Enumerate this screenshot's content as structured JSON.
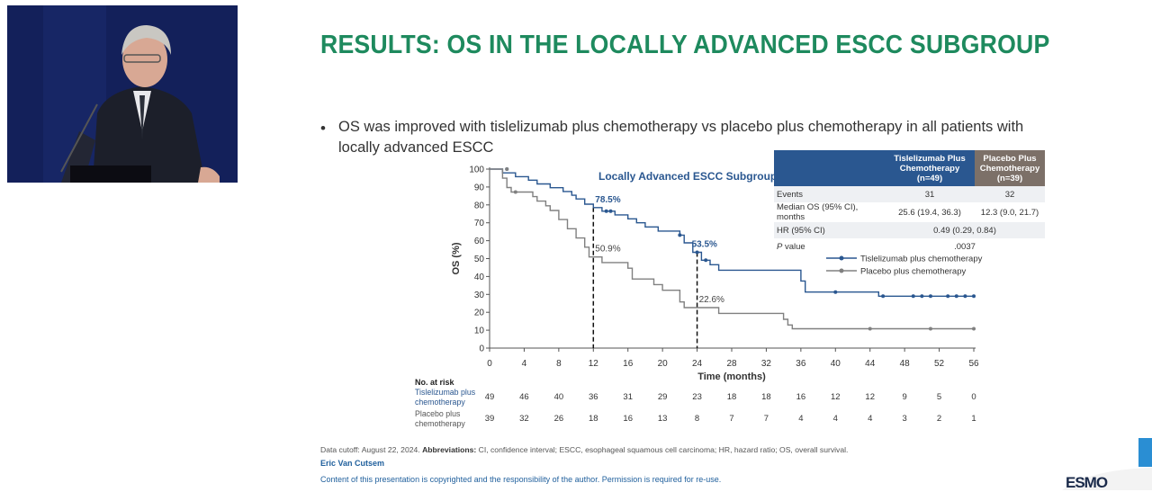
{
  "slide": {
    "title": "RESULTS: OS IN THE LOCALLY ADVANCED ESCC SUBGROUP",
    "bullet_marker": "•",
    "bullet": "OS was improved with tislelizumab plus chemotherapy vs placebo plus chemotherapy in all patients with locally advanced ESCC"
  },
  "table": {
    "headers": [
      "",
      "Tislelizumab Plus Chemotherapy (n=49)",
      "Placebo Plus Chemotherapy (n=39)"
    ],
    "header_lines": {
      "tis": [
        "Tislelizumab Plus",
        "Chemotherapy",
        "(n=49)"
      ],
      "pla": [
        "Placebo Plus",
        "Chemotherapy",
        "(n=39)"
      ]
    },
    "rows": [
      {
        "label": "Events",
        "tis": "31",
        "pla": "32"
      },
      {
        "label": "Median OS (95% CI), months",
        "tis": "25.6 (19.4, 36.3)",
        "pla": "12.3 (9.0, 21.7)"
      },
      {
        "label": "HR (95% CI)",
        "value": "0.49 (0.29, 0.84)"
      },
      {
        "label_italic": "P",
        "label_rest": " value",
        "value": ".0037"
      }
    ]
  },
  "footer": {
    "cutoff": "Data cutoff: August 22, 2024.",
    "abbrev_label": "Abbreviations:",
    "abbrev_text": "CI, confidence interval; ESCC, esophageal squamous cell carcinoma; HR, hazard ratio; OS, overall survival.",
    "author": "Eric Van Cutsem",
    "copyright": "Content of this presentation is copyrighted and the responsibility of the author. Permission is required for re-use.",
    "logo": "ESMO"
  },
  "colors": {
    "title_green": "#1e8a5e",
    "tislelizumab": "#2a5790",
    "placebo": "#808080",
    "placebo_header": "#7c7068",
    "link_blue": "#1f5f9c"
  },
  "chart_data": {
    "type": "line",
    "title": "Locally Advanced ESCC Subgroup",
    "xlabel": "Time (months)",
    "ylabel": "OS (%)",
    "xlim": [
      0,
      56
    ],
    "ylim": [
      0,
      100
    ],
    "xticks": [
      0,
      4,
      8,
      12,
      16,
      20,
      24,
      28,
      32,
      36,
      40,
      44,
      48,
      52,
      56
    ],
    "yticks": [
      0,
      10,
      20,
      30,
      40,
      50,
      60,
      70,
      80,
      90,
      100
    ],
    "legend_position": "right",
    "series": [
      {
        "name": "Tislelizumab plus chemotherapy",
        "color": "#2a5790",
        "steps": [
          [
            0,
            100
          ],
          [
            1.5,
            100
          ],
          [
            1.5,
            97.9
          ],
          [
            3,
            97.9
          ],
          [
            3,
            95.8
          ],
          [
            4.5,
            95.8
          ],
          [
            4.5,
            93.8
          ],
          [
            5.5,
            93.8
          ],
          [
            5.5,
            91.7
          ],
          [
            7,
            91.7
          ],
          [
            7,
            89.6
          ],
          [
            8.5,
            89.6
          ],
          [
            8.5,
            87.5
          ],
          [
            9.5,
            87.5
          ],
          [
            9.5,
            85.4
          ],
          [
            10,
            85.4
          ],
          [
            10,
            83.3
          ],
          [
            11,
            83.3
          ],
          [
            11,
            80.4
          ],
          [
            12,
            80.4
          ],
          [
            12,
            78.5
          ],
          [
            13,
            78.5
          ],
          [
            13,
            76.5
          ],
          [
            14.5,
            76.5
          ],
          [
            14.5,
            74.4
          ],
          [
            16,
            74.4
          ],
          [
            16,
            72.2
          ],
          [
            17,
            72.2
          ],
          [
            17,
            70.0
          ],
          [
            18,
            70.0
          ],
          [
            18,
            67.7
          ],
          [
            19.5,
            67.7
          ],
          [
            19.5,
            65.4
          ],
          [
            22,
            65.4
          ],
          [
            22,
            63.1
          ],
          [
            22.5,
            63.1
          ],
          [
            22.5,
            58.8
          ],
          [
            23.5,
            58.8
          ],
          [
            23.5,
            53.5
          ],
          [
            24.5,
            53.5
          ],
          [
            24.5,
            49.1
          ],
          [
            25.5,
            49.1
          ],
          [
            25.5,
            46.6
          ],
          [
            26.5,
            46.6
          ],
          [
            26.5,
            43.5
          ],
          [
            36,
            43.5
          ],
          [
            36,
            37.5
          ],
          [
            36.5,
            37.5
          ],
          [
            36.5,
            31.3
          ],
          [
            45,
            31.3
          ],
          [
            45,
            29.0
          ],
          [
            56,
            29.0
          ]
        ],
        "censors": [
          [
            2,
            100
          ],
          [
            13.5,
            76.5
          ],
          [
            14,
            76.5
          ],
          [
            22,
            63.1
          ],
          [
            24,
            53.5
          ],
          [
            25,
            49.1
          ],
          [
            40,
            31.3
          ],
          [
            45.5,
            29.0
          ],
          [
            49,
            29.0
          ],
          [
            50,
            29.0
          ],
          [
            51,
            29.0
          ],
          [
            53,
            29.0
          ],
          [
            54,
            29.0
          ],
          [
            55,
            29.0
          ],
          [
            56,
            29.0
          ]
        ],
        "landmarks": [
          {
            "x": 12,
            "y": 78.5,
            "label": "78.5%"
          },
          {
            "x": 24,
            "y": 53.5,
            "label": "53.5%"
          }
        ]
      },
      {
        "name": "Placebo plus chemotherapy",
        "color": "#808080",
        "steps": [
          [
            0,
            100
          ],
          [
            1.5,
            100
          ],
          [
            1.5,
            94.9
          ],
          [
            2,
            94.9
          ],
          [
            2,
            89.7
          ],
          [
            2.5,
            89.7
          ],
          [
            2.5,
            87.2
          ],
          [
            5,
            87.2
          ],
          [
            5,
            84.6
          ],
          [
            5.5,
            84.6
          ],
          [
            5.5,
            82.1
          ],
          [
            6.5,
            82.1
          ],
          [
            6.5,
            79.5
          ],
          [
            7,
            79.5
          ],
          [
            7,
            76.9
          ],
          [
            8,
            76.9
          ],
          [
            8,
            71.8
          ],
          [
            9,
            71.8
          ],
          [
            9,
            66.7
          ],
          [
            10,
            66.7
          ],
          [
            10,
            61.5
          ],
          [
            11,
            61.5
          ],
          [
            11,
            56.4
          ],
          [
            11.5,
            56.4
          ],
          [
            11.5,
            50.9
          ],
          [
            13,
            50.9
          ],
          [
            13,
            47.8
          ],
          [
            16,
            47.8
          ],
          [
            16,
            44.6
          ],
          [
            16.5,
            44.6
          ],
          [
            16.5,
            38.6
          ],
          [
            19,
            38.6
          ],
          [
            19,
            35.5
          ],
          [
            20,
            35.5
          ],
          [
            20,
            32.3
          ],
          [
            22,
            32.3
          ],
          [
            22,
            25.8
          ],
          [
            22.5,
            25.8
          ],
          [
            22.5,
            22.6
          ],
          [
            26.5,
            22.6
          ],
          [
            26.5,
            19.4
          ],
          [
            34,
            19.4
          ],
          [
            34,
            16.1
          ],
          [
            34.5,
            16.1
          ],
          [
            34.5,
            12.9
          ],
          [
            35,
            12.9
          ],
          [
            35,
            10.8
          ],
          [
            56,
            10.8
          ]
        ],
        "censors": [
          [
            2,
            100
          ],
          [
            3,
            87.2
          ],
          [
            44,
            10.8
          ],
          [
            51,
            10.8
          ],
          [
            56,
            10.8
          ]
        ],
        "landmarks": [
          {
            "x": 12,
            "y": 50.9,
            "label": "50.9%"
          },
          {
            "x": 24,
            "y": 22.6,
            "label": "22.6%"
          }
        ]
      }
    ],
    "number_at_risk": {
      "header": "No. at risk",
      "rows": [
        {
          "label_lines": [
            "Tislelizumab plus",
            "chemotherapy"
          ],
          "values": [
            49,
            46,
            40,
            36,
            31,
            29,
            23,
            18,
            18,
            16,
            12,
            12,
            9,
            5,
            0
          ]
        },
        {
          "label_lines": [
            "Placebo plus",
            "chemotherapy"
          ],
          "values": [
            39,
            32,
            26,
            18,
            16,
            13,
            8,
            7,
            7,
            4,
            4,
            4,
            3,
            2,
            1
          ]
        }
      ]
    }
  }
}
